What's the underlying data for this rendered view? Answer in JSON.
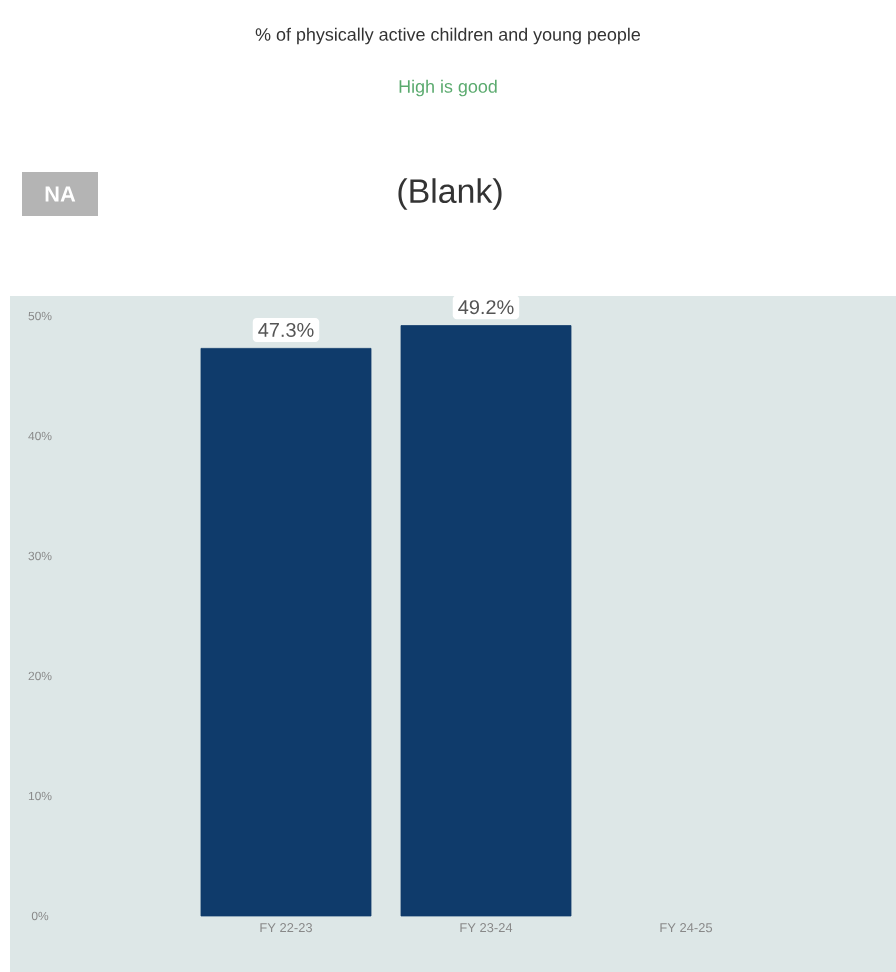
{
  "chart_data": {
    "type": "bar",
    "title": "% of physically active children and young people",
    "subtitle": "High is good",
    "annotations": [
      "NA",
      "(Blank)"
    ],
    "categories": [
      "FY 22-23",
      "FY 23-24",
      "FY 24-25"
    ],
    "values": [
      47.3,
      49.2,
      null
    ],
    "value_labels": [
      "47.3%",
      "49.2%",
      null
    ],
    "color": "#0f3b6b",
    "ylim": [
      0,
      52
    ],
    "yticks": [
      {
        "value": 0,
        "label": "0%"
      },
      {
        "value": 10,
        "label": "10%"
      },
      {
        "value": 20,
        "label": "20%"
      },
      {
        "value": 30,
        "label": "30%"
      },
      {
        "value": 40,
        "label": "40%"
      },
      {
        "value": 50,
        "label": "50%"
      }
    ],
    "grid": false
  }
}
